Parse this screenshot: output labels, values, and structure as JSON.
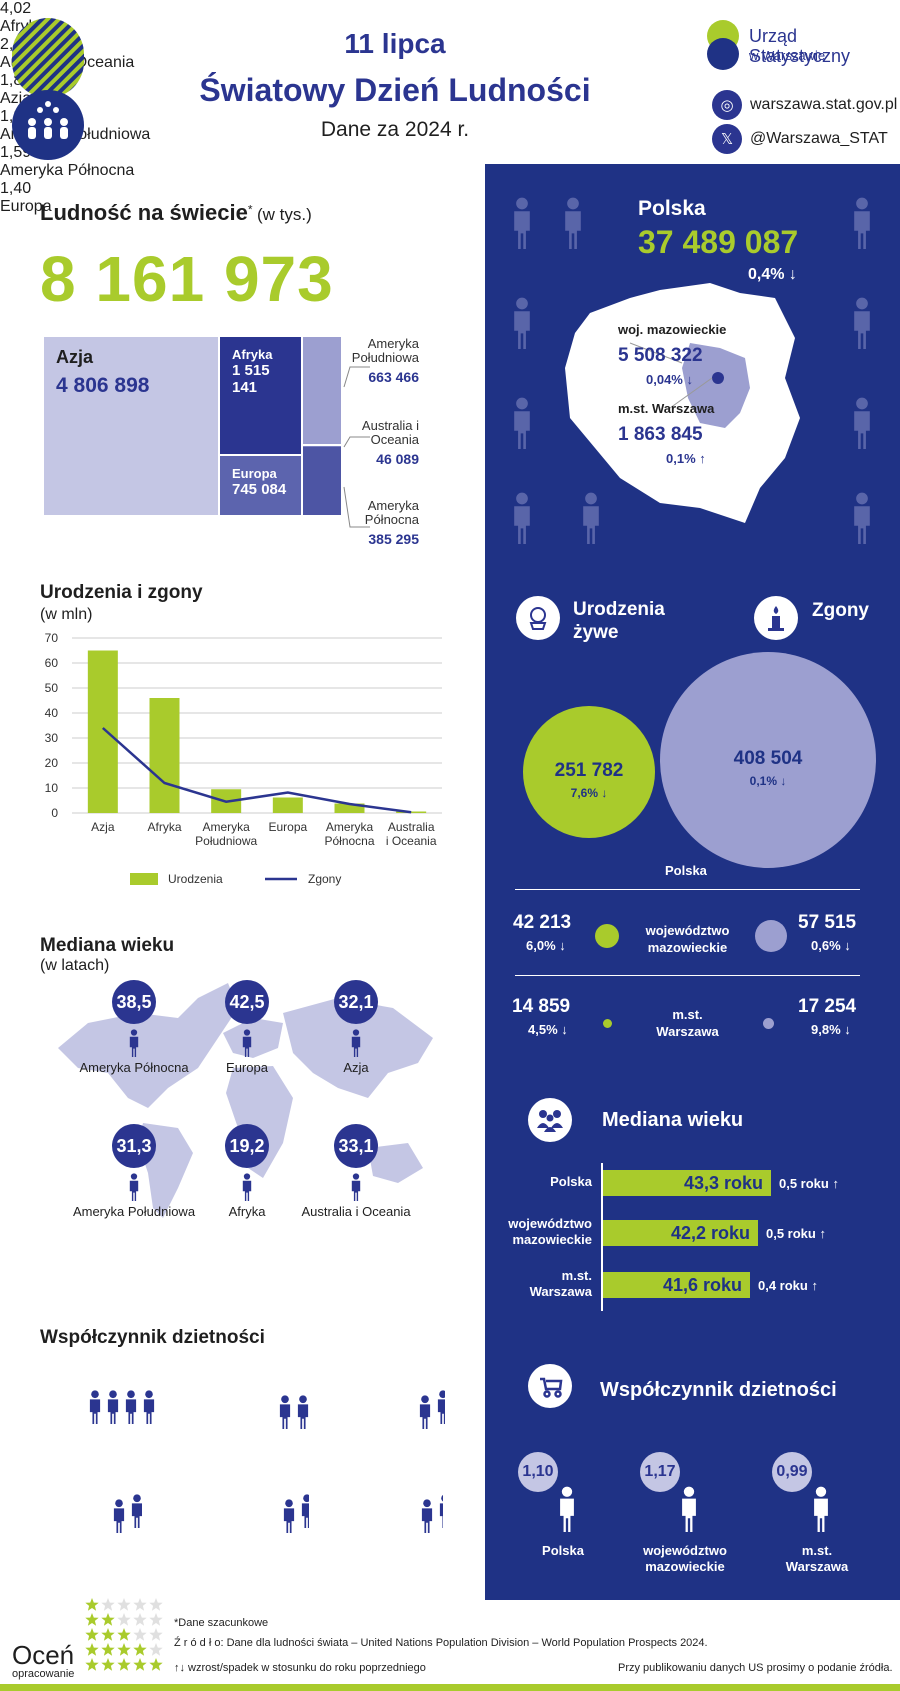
{
  "header": {
    "title": "11 lipca",
    "subtitle": "Światowy Dzień Ludności",
    "date": "Dane za 2024 r."
  },
  "office": {
    "name": "Urząd Statystyczny",
    "sub": "w Warszawie",
    "website": "warszawa.stat.gov.pl",
    "twitter": "@Warszawa_STAT"
  },
  "world": {
    "title": "Ludność na świecie",
    "asterisk": "*",
    "unit": "(w tys.)",
    "total": "8 161 973",
    "regions": [
      {
        "name": "Azja",
        "value": "4 806 898"
      },
      {
        "name": "Afryka",
        "value": "1 515 141"
      },
      {
        "name": "Europa",
        "value": "745 084"
      },
      {
        "name": "Ameryka Południowa",
        "value": "663 466"
      },
      {
        "name": "Australia i Oceania",
        "value": "46 089"
      },
      {
        "name": "Ameryka Północna",
        "value": "385 295"
      }
    ]
  },
  "births_deaths": {
    "title": "Urodzenia i zgony",
    "unit": "(w mln)",
    "legend_births": "Urodzenia",
    "legend_deaths": "Zgony"
  },
  "chart_data": {
    "type": "bar",
    "title": "Urodzenia i zgony",
    "ylabel": "(w mln)",
    "categories": [
      "Azja",
      "Afryka",
      "Ameryka Południowa",
      "Europa",
      "Ameryka Północna",
      "Australia i Oceania"
    ],
    "ylim": [
      0,
      70
    ],
    "yticks": [
      0,
      10,
      20,
      30,
      40,
      50,
      60,
      70
    ],
    "series": [
      {
        "name": "Urodzenia",
        "type": "bar",
        "color": "#a9cb2c",
        "values": [
          65,
          46,
          9.5,
          6.2,
          3.8,
          0.6
        ]
      },
      {
        "name": "Zgony",
        "type": "line",
        "color": "#2b3590",
        "values": [
          34,
          12,
          4.5,
          8.2,
          3.6,
          0.3
        ]
      }
    ],
    "grid": true,
    "legend": "bottom"
  },
  "median": {
    "title": "Mediana wieku",
    "unit": "(w latach)",
    "items": [
      {
        "region": "Ameryka Północna",
        "value": "38,5"
      },
      {
        "region": "Europa",
        "value": "42,5"
      },
      {
        "region": "Azja",
        "value": "32,1"
      },
      {
        "region": "Ameryka Południowa",
        "value": "31,3"
      },
      {
        "region": "Afryka",
        "value": "19,2"
      },
      {
        "region": "Australia i Oceania",
        "value": "33,1"
      }
    ]
  },
  "fertility": {
    "title": "Współczynnik dzietności",
    "items": [
      {
        "region": "Afryka",
        "value": "4,02"
      },
      {
        "region": "Australia i Oceania",
        "value": "2,14"
      },
      {
        "region": "Azja",
        "value": "1,88"
      },
      {
        "region": "Ameryka Południowa",
        "value": "1,80"
      },
      {
        "region": "Ameryka Północna",
        "value": "1,59"
      },
      {
        "region": "Europa",
        "value": "1,40"
      }
    ]
  },
  "poland": {
    "title": "Polska",
    "population": "37 489 087",
    "change": "0,4%",
    "arrow_down": "↓",
    "arrow_up": "↑",
    "mazowieckie_label": "woj. mazowieckie",
    "mazowieckie_pop": "5 508 322",
    "mazowieckie_change": "0,04%",
    "warszawa_label": "m.st. Warszawa",
    "warszawa_pop": "1 863 845",
    "warszawa_change": "0,1%"
  },
  "vital": {
    "births_title_1": "Urodzenia",
    "births_title_2": "żywe",
    "deaths_title": "Zgony",
    "poland_births": "251 782",
    "poland_births_change": "7,6%",
    "poland_deaths": "408 504",
    "poland_deaths_change": "0,1%",
    "poland_label": "Polska",
    "maz_label_1": "województwo",
    "maz_label_2": "mazowieckie",
    "maz_births": "42 213",
    "maz_births_change": "6,0%",
    "maz_deaths": "57 515",
    "maz_deaths_change": "0,6%",
    "waw_label_1": "m.st.",
    "waw_label_2": "Warszawa",
    "waw_births": "14 859",
    "waw_births_change": "4,5%",
    "waw_deaths": "17 254",
    "waw_deaths_change": "9,8%"
  },
  "pl_median": {
    "title": "Mediana wieku",
    "items": [
      {
        "label_1": "Polska",
        "label_2": "",
        "value": "43,3 roku",
        "change": "0,5 roku",
        "level": 43.3
      },
      {
        "label_1": "województwo",
        "label_2": "mazowieckie",
        "value": "42,2 roku",
        "change": "0,5 roku",
        "level": 42.2
      },
      {
        "label_1": "m.st.",
        "label_2": "Warszawa",
        "value": "41,6 roku",
        "change": "0,4 roku",
        "level": 41.6
      }
    ]
  },
  "pl_fertility": {
    "title": "Współczynnik dzietności",
    "items": [
      {
        "label_1": "Polska",
        "label_2": "",
        "value": "1,10"
      },
      {
        "label_1": "województwo",
        "label_2": "mazowieckie",
        "value": "1,17"
      },
      {
        "label_1": "m.st.",
        "label_2": "Warszawa",
        "value": "0,99"
      }
    ]
  },
  "footer": {
    "rate_1": "Oceń",
    "rate_2": "opracowanie",
    "note": "*Dane szacunkowe",
    "source": "Ź r ó d ł o: Dane dla ludności świata – United Nations Population Division – World Population Prospects 2024.",
    "arrows": "↑↓ wzrost/spadek w stosunku do roku poprzedniego",
    "publish": "Przy publikowaniu danych US prosimy o podanie źródła."
  },
  "colors": {
    "navy": "#1f3285",
    "lime": "#a9cb2c",
    "lavender": "#9c9fd0"
  }
}
